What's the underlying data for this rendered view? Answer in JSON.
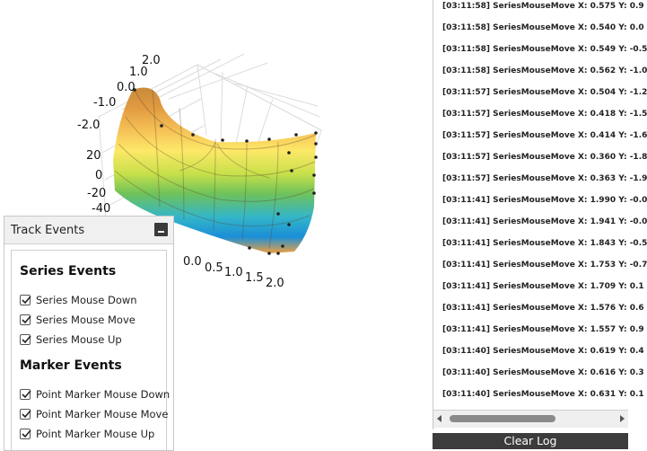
{
  "chart_data": {
    "type": "surface",
    "axes": {
      "x_ticks": [
        "2.0",
        "1.0",
        "0.0",
        "-1.0",
        "-2.0"
      ],
      "y_ticks": [
        "20",
        "0",
        "-20",
        "-40"
      ],
      "z_ticks": [
        "0.0",
        "0.5",
        "1.0",
        "1.5",
        "2.0"
      ]
    },
    "colormap": [
      "#1a8fd8",
      "#34b6c8",
      "#6fc25a",
      "#c7e04a",
      "#fde868",
      "#f1a944",
      "#c98a3c"
    ]
  },
  "track_panel": {
    "title": "Track Events",
    "series_group_title": "Series Events",
    "marker_group_title": "Marker Events",
    "series_events": [
      {
        "label": "Series Mouse Down",
        "checked": true
      },
      {
        "label": "Series Mouse Move",
        "checked": true
      },
      {
        "label": "Series Mouse Up",
        "checked": true
      }
    ],
    "marker_events": [
      {
        "label": "Point Marker Mouse Down",
        "checked": true
      },
      {
        "label": "Point Marker Mouse Move",
        "checked": true
      },
      {
        "label": "Point Marker Mouse Up",
        "checked": true
      }
    ]
  },
  "log": {
    "entries": [
      "[03:11:58] SeriesMouseMove X: 0.575 Y: 0.9",
      "[03:11:58] SeriesMouseMove X: 0.540 Y: 0.0",
      "[03:11:58] SeriesMouseMove X: 0.549 Y: -0.5",
      "[03:11:58] SeriesMouseMove X: 0.562 Y: -1.0",
      "[03:11:57] SeriesMouseMove X: 0.504 Y: -1.2",
      "[03:11:57] SeriesMouseMove X: 0.418 Y: -1.5",
      "[03:11:57] SeriesMouseMove X: 0.414 Y: -1.6",
      "[03:11:57] SeriesMouseMove X: 0.360 Y: -1.8",
      "[03:11:57] SeriesMouseMove X: 0.363 Y: -1.9",
      "[03:11:41] SeriesMouseMove X: 1.990 Y: -0.0",
      "[03:11:41] SeriesMouseMove X: 1.941 Y: -0.0",
      "[03:11:41] SeriesMouseMove X: 1.843 Y: -0.5",
      "[03:11:41] SeriesMouseMove X: 1.753 Y: -0.7",
      "[03:11:41] SeriesMouseMove X: 1.709 Y: 0.1",
      "[03:11:41] SeriesMouseMove X: 1.576 Y: 0.6",
      "[03:11:41] SeriesMouseMove X: 1.557 Y: 0.9",
      "[03:11:40] SeriesMouseMove X: 0.619 Y: 0.4",
      "[03:11:40] SeriesMouseMove X: 0.616 Y: 0.3",
      "[03:11:40] SeriesMouseMove X: 0.631 Y: 0.1"
    ],
    "clear_button_label": "Clear Log"
  }
}
